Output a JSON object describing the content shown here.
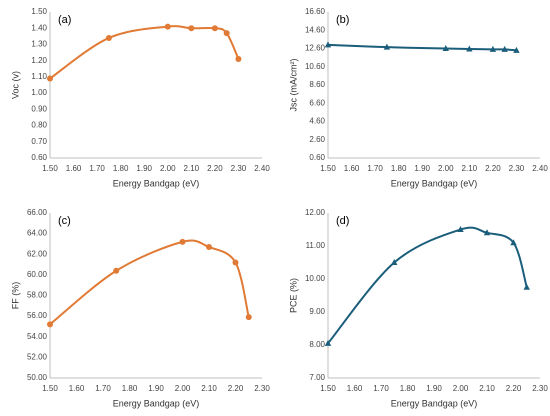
{
  "chart_data": [
    {
      "type": "line",
      "annotation": "(a)",
      "x_label": "Energy Bandgap (eV)",
      "y_label": "Voc (v)",
      "x": [
        1.5,
        1.75,
        2.0,
        2.1,
        2.2,
        2.25,
        2.3
      ],
      "series": [
        {
          "color": "#E07A34",
          "marker": "circle",
          "values": [
            1.09,
            1.34,
            1.41,
            1.4,
            1.4,
            1.37,
            1.21
          ]
        }
      ],
      "xlim": [
        1.5,
        2.4
      ],
      "xticks": [
        {
          "value": 1.5,
          "label": "1.50"
        },
        {
          "value": 1.6,
          "label": "1.60"
        },
        {
          "value": 1.7,
          "label": "1.70"
        },
        {
          "value": 1.8,
          "label": "1.80"
        },
        {
          "value": 1.9,
          "label": "1.90"
        },
        {
          "value": 2.0,
          "label": "2.00"
        },
        {
          "value": 2.1,
          "label": "2.10"
        },
        {
          "value": 2.2,
          "label": "2.20"
        },
        {
          "value": 2.3,
          "label": "2.30"
        },
        {
          "value": 2.4,
          "label": "2.40"
        }
      ],
      "ylim": [
        0.6,
        1.5
      ],
      "yticks": [
        {
          "value": 0.6,
          "label": "0.60"
        },
        {
          "value": 0.7,
          "label": "0.70"
        },
        {
          "value": 0.8,
          "label": "0.80"
        },
        {
          "value": 0.9,
          "label": "0.90"
        },
        {
          "value": 1.0,
          "label": "1.00"
        },
        {
          "value": 1.1,
          "label": "1.10"
        },
        {
          "value": 1.2,
          "label": "1.20"
        },
        {
          "value": 1.3,
          "label": "1.30"
        },
        {
          "value": 1.4,
          "label": "1.40"
        },
        {
          "value": 1.5,
          "label": "1.50"
        }
      ],
      "grid": false
    },
    {
      "type": "line",
      "annotation": "(b)",
      "x_label": "Energy Bandgap (eV)",
      "y_label": "Jsc (mA/cm²)",
      "x": [
        1.5,
        1.75,
        2.0,
        2.1,
        2.2,
        2.25,
        2.3
      ],
      "series": [
        {
          "color": "#1B5E7B",
          "marker": "triangle",
          "values": [
            13.0,
            12.75,
            12.6,
            12.55,
            12.5,
            12.5,
            12.4
          ]
        }
      ],
      "xlim": [
        1.5,
        2.4
      ],
      "xticks": [
        {
          "value": 1.5,
          "label": "1.50"
        },
        {
          "value": 1.6,
          "label": "1.60"
        },
        {
          "value": 1.7,
          "label": "1.70"
        },
        {
          "value": 1.8,
          "label": "1.80"
        },
        {
          "value": 1.9,
          "label": "1.90"
        },
        {
          "value": 2.0,
          "label": "2.00"
        },
        {
          "value": 2.1,
          "label": "2.10"
        },
        {
          "value": 2.2,
          "label": "2.20"
        },
        {
          "value": 2.3,
          "label": "2.30"
        },
        {
          "value": 2.4,
          "label": "2.40"
        }
      ],
      "ylim": [
        0.6,
        16.6
      ],
      "yticks": [
        {
          "value": 0.6,
          "label": "0.60"
        },
        {
          "value": 2.6,
          "label": "2.60"
        },
        {
          "value": 4.6,
          "label": "4.60"
        },
        {
          "value": 6.6,
          "label": "6.60"
        },
        {
          "value": 8.6,
          "label": "8.60"
        },
        {
          "value": 10.6,
          "label": "10.60"
        },
        {
          "value": 12.6,
          "label": "12.60"
        },
        {
          "value": 14.6,
          "label": "14.60"
        },
        {
          "value": 16.6,
          "label": "16.60"
        }
      ],
      "grid": false
    },
    {
      "type": "line",
      "annotation": "(c)",
      "x_label": "Energy Bandgap (eV)",
      "y_label": "FF (%)",
      "x": [
        1.5,
        1.75,
        2.0,
        2.1,
        2.2,
        2.25
      ],
      "series": [
        {
          "color": "#E07A34",
          "marker": "circle",
          "values": [
            55.2,
            60.4,
            63.2,
            62.7,
            61.2,
            55.9
          ]
        }
      ],
      "xlim": [
        1.5,
        2.3
      ],
      "xticks": [
        {
          "value": 1.5,
          "label": "1.50"
        },
        {
          "value": 1.6,
          "label": "1.60"
        },
        {
          "value": 1.7,
          "label": "1.70"
        },
        {
          "value": 1.8,
          "label": "1.80"
        },
        {
          "value": 1.9,
          "label": "1.90"
        },
        {
          "value": 2.0,
          "label": "2.00"
        },
        {
          "value": 2.1,
          "label": "2.10"
        },
        {
          "value": 2.2,
          "label": "2.20"
        },
        {
          "value": 2.3,
          "label": "2.30"
        }
      ],
      "ylim": [
        50,
        66
      ],
      "yticks": [
        {
          "value": 50,
          "label": "50.00"
        },
        {
          "value": 52,
          "label": "52.00"
        },
        {
          "value": 54,
          "label": "54.00"
        },
        {
          "value": 56,
          "label": "56.00"
        },
        {
          "value": 58,
          "label": "58.00"
        },
        {
          "value": 60,
          "label": "60.00"
        },
        {
          "value": 62,
          "label": "62.00"
        },
        {
          "value": 64,
          "label": "64.00"
        },
        {
          "value": 66,
          "label": "66.00"
        }
      ],
      "grid": false
    },
    {
      "type": "line",
      "annotation": "(d)",
      "x_label": "Energy Bandgap (eV)",
      "y_label": "PCE (%)",
      "x": [
        1.5,
        1.75,
        2.0,
        2.1,
        2.2,
        2.25
      ],
      "series": [
        {
          "color": "#1B5E7B",
          "marker": "triangle",
          "values": [
            8.05,
            10.5,
            11.5,
            11.4,
            11.1,
            9.75
          ]
        }
      ],
      "xlim": [
        1.5,
        2.3
      ],
      "xticks": [
        {
          "value": 1.5,
          "label": "1.50"
        },
        {
          "value": 1.6,
          "label": "1.60"
        },
        {
          "value": 1.7,
          "label": "1.70"
        },
        {
          "value": 1.8,
          "label": "1.80"
        },
        {
          "value": 1.9,
          "label": "1.90"
        },
        {
          "value": 2.0,
          "label": "2.00"
        },
        {
          "value": 2.1,
          "label": "2.10"
        },
        {
          "value": 2.2,
          "label": "2.20"
        },
        {
          "value": 2.3,
          "label": "2.30"
        }
      ],
      "ylim": [
        7,
        12
      ],
      "yticks": [
        {
          "value": 7,
          "label": "7.00"
        },
        {
          "value": 8,
          "label": "8.00"
        },
        {
          "value": 9,
          "label": "9.00"
        },
        {
          "value": 10,
          "label": "10.00"
        },
        {
          "value": 11,
          "label": "11.00"
        },
        {
          "value": 12,
          "label": "12.00"
        }
      ],
      "grid": false
    }
  ]
}
